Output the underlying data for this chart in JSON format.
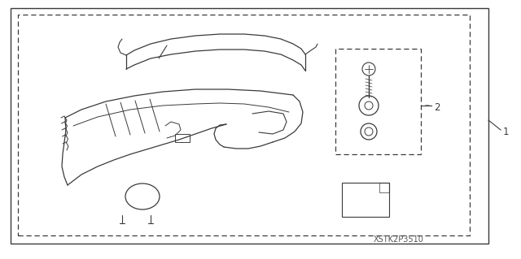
{
  "bg_color": "#ffffff",
  "line_color": "#3a3a3a",
  "dashed_color": "#3a3a3a",
  "label_1": "1",
  "label_2": "2",
  "part_code": "XSTK2P3510",
  "figsize": [
    6.4,
    3.19
  ],
  "dpi": 100
}
